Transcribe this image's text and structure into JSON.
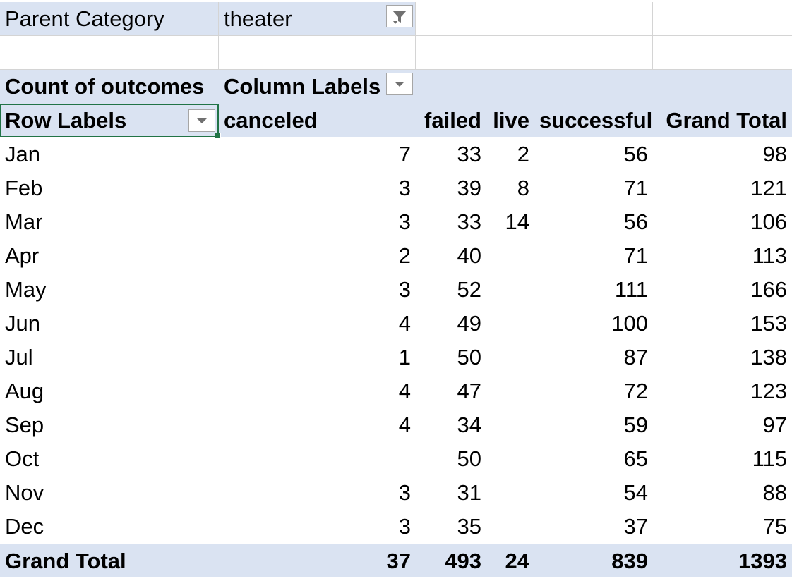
{
  "filter": {
    "label": "Parent Category",
    "value": "theater"
  },
  "pivot": {
    "value_label": "Count of outcomes",
    "column_labels": "Column Labels",
    "row_labels": "Row Labels",
    "columns": [
      "canceled",
      "failed",
      "live",
      "successful",
      "Grand Total"
    ],
    "rows": [
      {
        "label": "Jan",
        "values": [
          "7",
          "33",
          "2",
          "56",
          "98"
        ]
      },
      {
        "label": "Feb",
        "values": [
          "3",
          "39",
          "8",
          "71",
          "121"
        ]
      },
      {
        "label": "Mar",
        "values": [
          "3",
          "33",
          "14",
          "56",
          "106"
        ]
      },
      {
        "label": "Apr",
        "values": [
          "2",
          "40",
          "",
          "71",
          "113"
        ]
      },
      {
        "label": "May",
        "values": [
          "3",
          "52",
          "",
          "111",
          "166"
        ]
      },
      {
        "label": "Jun",
        "values": [
          "4",
          "49",
          "",
          "100",
          "153"
        ]
      },
      {
        "label": "Jul",
        "values": [
          "1",
          "50",
          "",
          "87",
          "138"
        ]
      },
      {
        "label": "Aug",
        "values": [
          "4",
          "47",
          "",
          "72",
          "123"
        ]
      },
      {
        "label": "Sep",
        "values": [
          "4",
          "34",
          "",
          "59",
          "97"
        ]
      },
      {
        "label": "Oct",
        "values": [
          "",
          "50",
          "",
          "65",
          "115"
        ]
      },
      {
        "label": "Nov",
        "values": [
          "3",
          "31",
          "",
          "54",
          "88"
        ]
      },
      {
        "label": "Dec",
        "values": [
          "3",
          "35",
          "",
          "37",
          "75"
        ]
      }
    ],
    "grand_total": {
      "label": "Grand Total",
      "values": [
        "37",
        "493",
        "24",
        "839",
        "1393"
      ]
    }
  },
  "colors": {
    "header_fill": "#dae3f2",
    "selection": "#217346",
    "gridline": "#d4d4d4"
  },
  "icons": {
    "filter_button": "filter-dropdown-icon",
    "dropdown_button": "chevron-down-icon"
  }
}
